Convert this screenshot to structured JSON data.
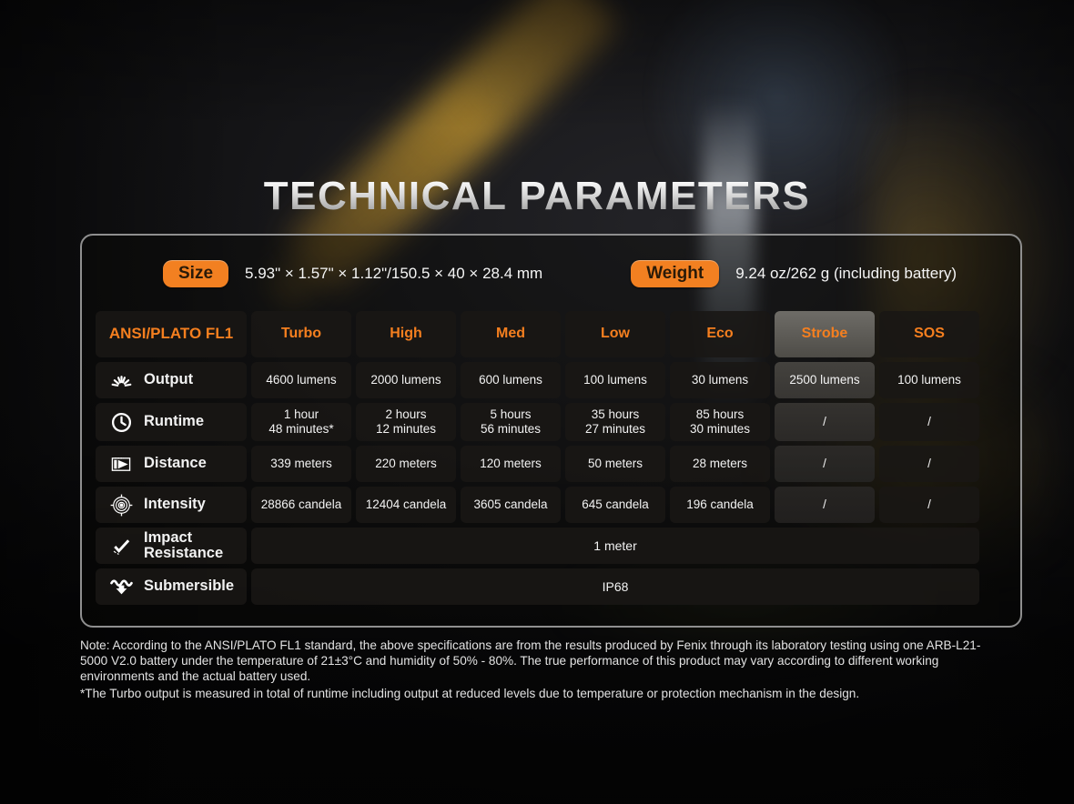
{
  "title": "TECHNICAL PARAMETERS",
  "size": {
    "label": "Size",
    "value": "5.93\" × 1.57\" × 1.12\"/150.5 × 40 × 28.4 mm"
  },
  "weight": {
    "label": "Weight",
    "value": "9.24 oz/262 g (including battery)"
  },
  "table": {
    "header": [
      "ANSI/PLATO FL1",
      "Turbo",
      "High",
      "Med",
      "Low",
      "Eco",
      "Strobe",
      "SOS"
    ],
    "rows": [
      {
        "label": "Output",
        "icon": "output-icon",
        "values": [
          "4600 lumens",
          "2000 lumens",
          "600 lumens",
          "100 lumens",
          "30 lumens",
          "2500 lumens",
          "100 lumens"
        ]
      },
      {
        "label": "Runtime",
        "icon": "runtime-icon",
        "values": [
          "1 hour\n48 minutes*",
          "2 hours\n12 minutes",
          "5 hours\n56 minutes",
          "35 hours\n27 minutes",
          "85 hours\n30 minutes",
          "/",
          "/"
        ]
      },
      {
        "label": "Distance",
        "icon": "distance-icon",
        "values": [
          "339 meters",
          "220 meters",
          "120 meters",
          "50 meters",
          "28 meters",
          "/",
          "/"
        ]
      },
      {
        "label": "Intensity",
        "icon": "intensity-icon",
        "values": [
          "28866 candela",
          "12404 candela",
          "3605 candela",
          "645 candela",
          "196 candela",
          "/",
          "/"
        ]
      }
    ],
    "full_rows": [
      {
        "label": "Impact\nResistance",
        "icon": "impact-icon",
        "value": "1 meter"
      },
      {
        "label": "Submersible",
        "icon": "submersible-icon",
        "value": "IP68"
      }
    ]
  },
  "notes": {
    "main": "Note: According to the ANSI/PLATO FL1 standard, the above specifications are from the results produced by Fenix through its laboratory testing using one ARB-L21-5000 V2.0 battery under the temperature of 21±3°C and humidity of 50% - 80%. The true performance of this product may vary according to different working environments and the actual battery used.",
    "turbo": "*The Turbo output is measured in total of runtime including output at reduced levels due to temperature or protection mechanism in the design."
  },
  "colors": {
    "accent_orange": "#F28021",
    "header_text": "#F57F1F"
  }
}
